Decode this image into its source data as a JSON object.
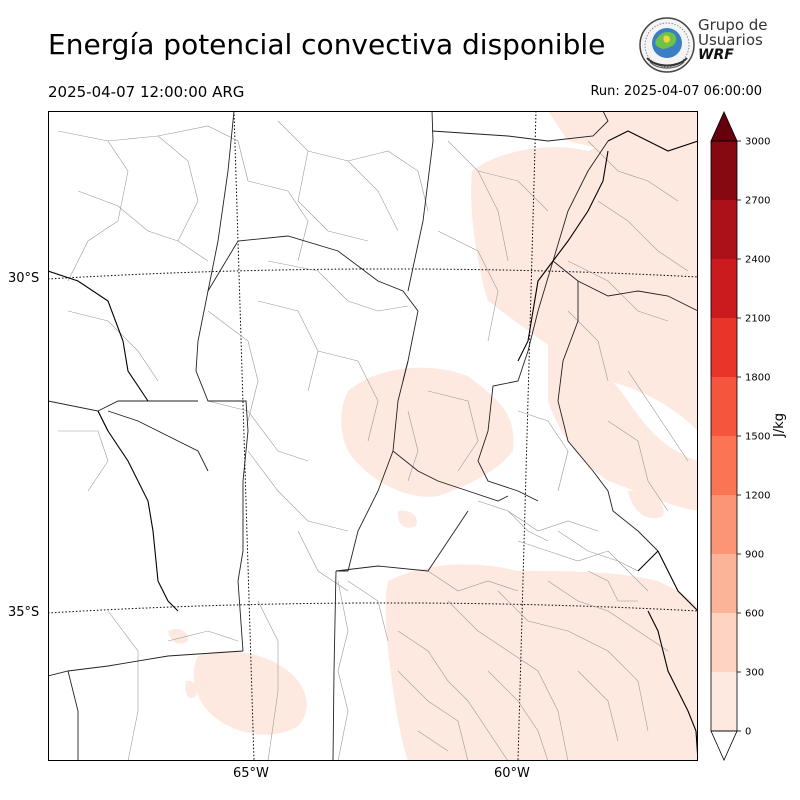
{
  "header": {
    "title": "Energía potencial convectiva disponible",
    "valid_time": "2025-04-07 12:00:00 ARG",
    "run_time": "Run: 2025-04-07 06:00:00"
  },
  "logo": {
    "line1": "Grupo de",
    "line2": "Usuarios",
    "line3": "WRF"
  },
  "map": {
    "lat_labels": [
      "30°S",
      "35°S"
    ],
    "lon_labels": [
      "65°W",
      "60°W"
    ]
  },
  "colorbar": {
    "unit": "J/kg",
    "ticks": [
      "0",
      "300",
      "600",
      "900",
      "1200",
      "1500",
      "1800",
      "2100",
      "2400",
      "2700",
      "3000"
    ],
    "colors": [
      "#fee9e1",
      "#fdd3c2",
      "#fcb499",
      "#fc9576",
      "#fb7555",
      "#f5553c",
      "#e83429",
      "#cc1b1e",
      "#ad1118",
      "#860811",
      "#67000d"
    ]
  }
}
